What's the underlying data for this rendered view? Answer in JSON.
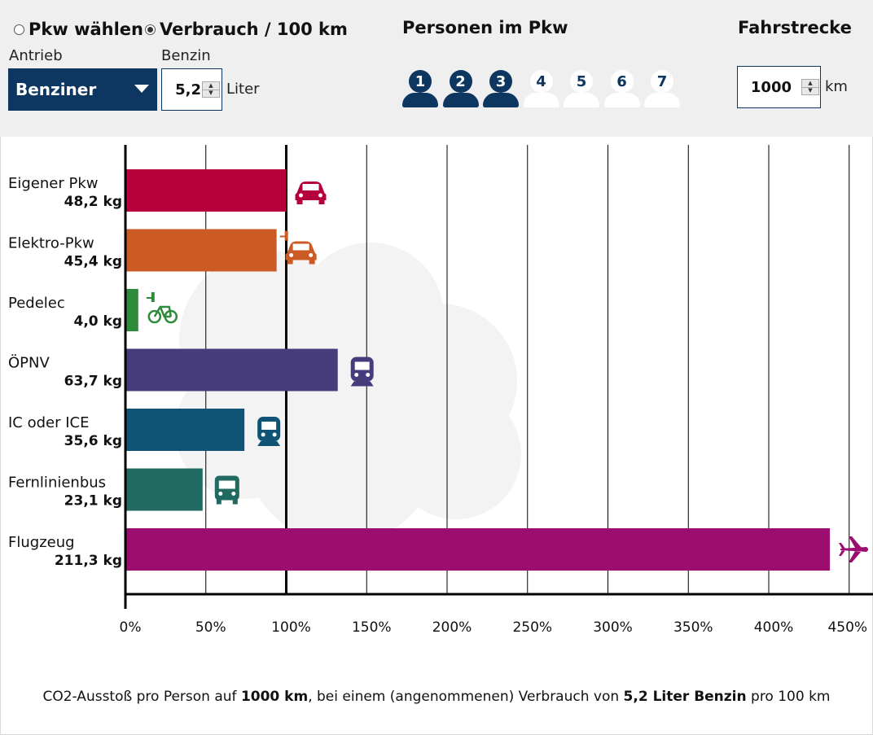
{
  "controls": {
    "radio_select_car": "Pkw wählen",
    "radio_consumption": "Verbrauch / 100 km",
    "drive_label": "Antrieb",
    "drive_value": "Benziner",
    "fuel_label": "Benzin",
    "consumption_value": "5,2",
    "consumption_unit": "Liter",
    "persons_heading": "Personen im Pkw",
    "persons": [
      "1",
      "2",
      "3",
      "4",
      "5",
      "6",
      "7"
    ],
    "persons_selected": 3,
    "distance_heading": "Fahrstrecke",
    "distance_value": "1000",
    "distance_unit": "km"
  },
  "colors": {
    "navy": "#0d3760",
    "panel": "#efefef"
  },
  "chart_data": {
    "type": "bar",
    "orientation": "horizontal",
    "categories": [
      "Eigener Pkw",
      "Elektro-Pkw",
      "Pedelec",
      "ÖPNV",
      "IC oder ICE",
      "Fernlinienbus",
      "Flugzeug"
    ],
    "value_labels": [
      "48,2 kg",
      "45,4 kg",
      "4,0 kg",
      "63,7 kg",
      "35,6 kg",
      "23,1 kg",
      "211,3 kg"
    ],
    "values": [
      48.2,
      45.4,
      4.0,
      63.7,
      35.6,
      23.1,
      211.3
    ],
    "percent_of_own_car": [
      100,
      94,
      8,
      132,
      74,
      48,
      438
    ],
    "colors": [
      "#b5003c",
      "#cc5a24",
      "#2e8b3a",
      "#463c7c",
      "#0f5474",
      "#206a62",
      "#9b0d6f"
    ],
    "icons": [
      "car-icon",
      "electric-car-icon",
      "electric-bike-icon",
      "subway-icon",
      "train-icon",
      "bus-icon",
      "airplane-icon"
    ],
    "xticks": [
      "0%",
      "50%",
      "100%",
      "150%",
      "200%",
      "250%",
      "300%",
      "350%",
      "400%",
      "450%"
    ],
    "xlim": [
      0,
      450
    ],
    "reference_line": 100,
    "grid": true,
    "footer": {
      "prefix": "CO2-Ausstoß pro Person auf ",
      "distance": "1000 km",
      "middle": ", bei einem (angenommenen) Verbrauch von ",
      "consumption": "5,2 Liter Benzin",
      "suffix": " pro 100 km"
    }
  }
}
